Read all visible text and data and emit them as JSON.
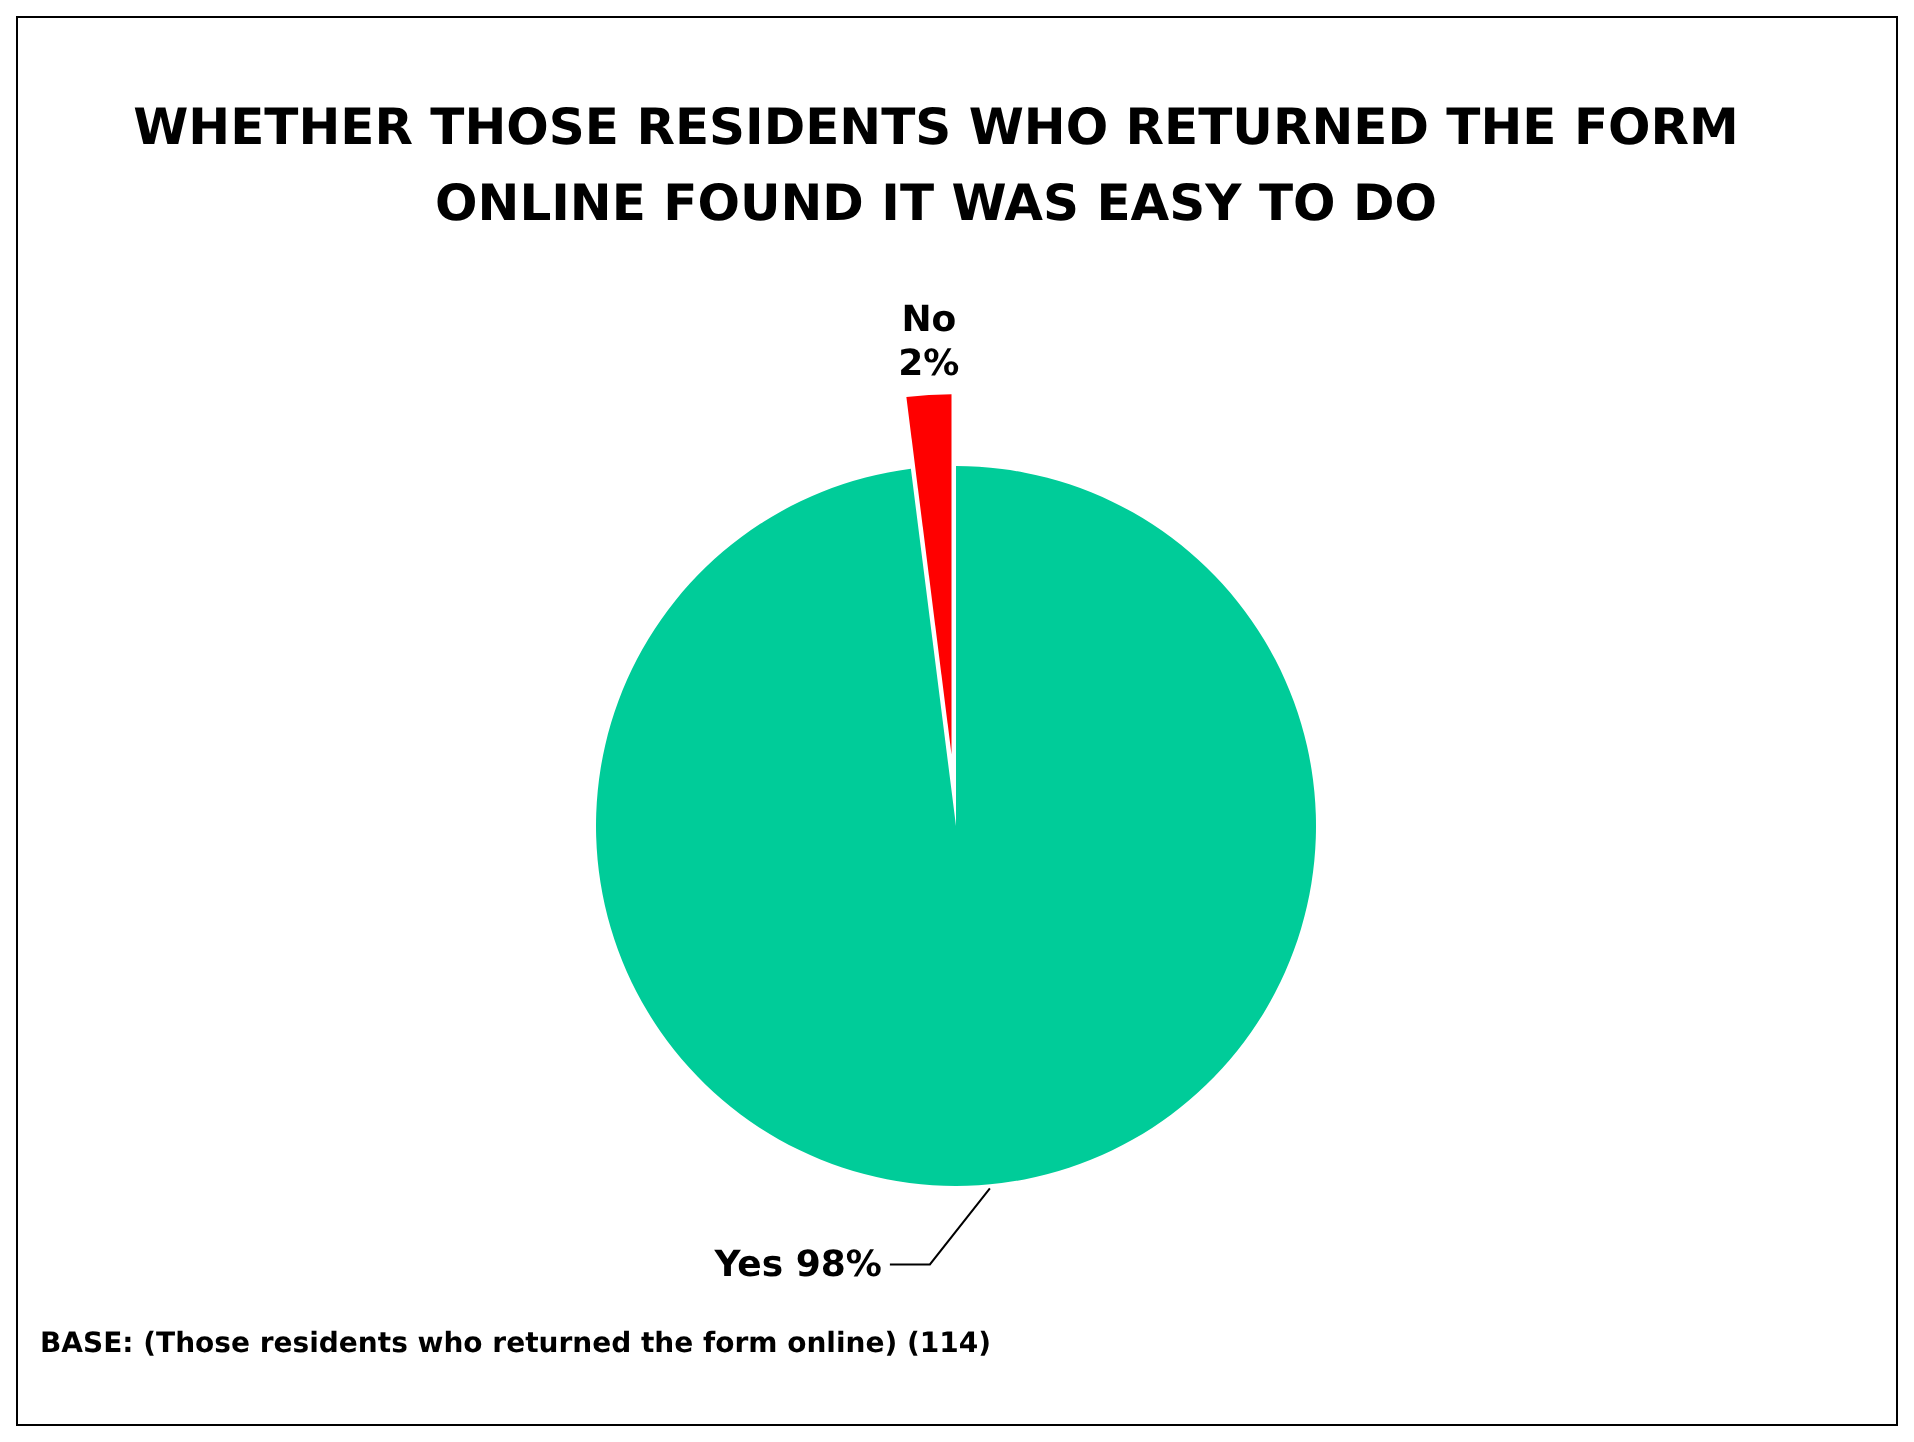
{
  "chart_data": {
    "type": "pie",
    "title": "WHETHER THOSE RESIDENTS WHO RETURNED THE FORM ONLINE FOUND IT WAS EASY TO DO",
    "categories": [
      "Yes",
      "No"
    ],
    "values": [
      98,
      2
    ],
    "value_labels": [
      "98%",
      "2%"
    ],
    "colors": [
      "#00cc99",
      "#ff0000"
    ],
    "annotations": [
      "BASE: (Those residents who returned the form online) (114)"
    ]
  }
}
